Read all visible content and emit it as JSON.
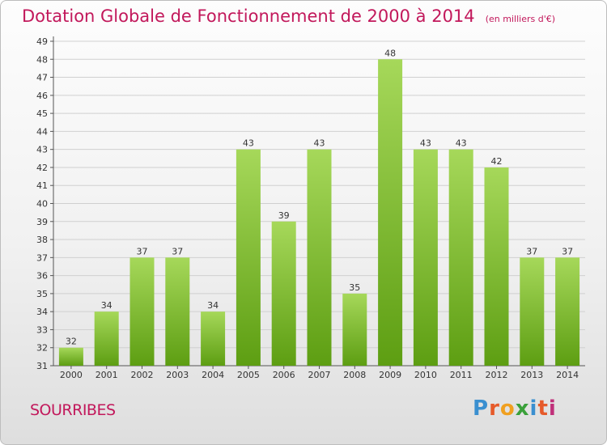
{
  "header": {
    "title": "Dotation Globale de Fonctionnement de 2000 à 2014",
    "unit": "(en milliers d'€)"
  },
  "footer": {
    "commune": "SOURRIBES",
    "logo_text": "Proxiti",
    "logo_colors": [
      "#3a8fd0",
      "#e65a2a",
      "#f0a020",
      "#3aa03a",
      "#3a8fd0",
      "#e65a2a",
      "#c0307a"
    ]
  },
  "colors": {
    "title": "#c2185b",
    "bar_light": "#a6d85a",
    "bar_dark": "#5d9e12",
    "grid": "#d0d0d0"
  },
  "chart_data": {
    "type": "bar",
    "title": "Dotation Globale de Fonctionnement de 2000 à 2014",
    "subtitle": "(en milliers d'€)",
    "xlabel": "",
    "ylabel": "",
    "categories": [
      "2000",
      "2001",
      "2002",
      "2003",
      "2004",
      "2005",
      "2006",
      "2007",
      "2008",
      "2009",
      "2010",
      "2011",
      "2012",
      "2013",
      "2014"
    ],
    "values": [
      32,
      34,
      37,
      37,
      34,
      43,
      39,
      43,
      35,
      48,
      43,
      43,
      42,
      37,
      37
    ],
    "ylim": [
      31,
      49
    ],
    "yticks": [
      31,
      32,
      33,
      34,
      35,
      36,
      37,
      38,
      39,
      40,
      41,
      42,
      43,
      44,
      45,
      46,
      47,
      48,
      49
    ],
    "grid": true,
    "legend": "none"
  }
}
